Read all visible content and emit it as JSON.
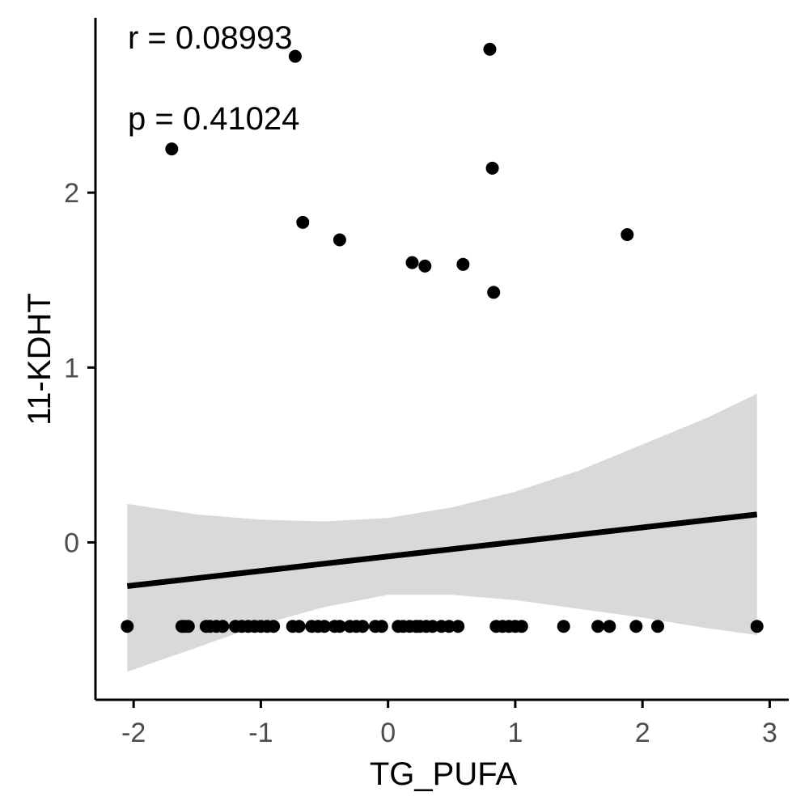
{
  "chart_data": {
    "type": "scatter",
    "xlabel": "TG_PUFA",
    "ylabel": "11-KDHT",
    "xlim": [
      -2.3,
      3.15
    ],
    "ylim": [
      -0.9,
      3.0
    ],
    "x_ticks": [
      -2,
      -1,
      0,
      1,
      2,
      3
    ],
    "y_ticks": [
      0,
      1,
      2
    ],
    "grid": false,
    "annotations": [
      "r = 0.08993",
      "p = 0.41024"
    ],
    "fit_line": {
      "x": [
        -2.05,
        2.9
      ],
      "y": [
        -0.25,
        0.16
      ]
    },
    "confidence_band": {
      "x": [
        -2.05,
        -1.5,
        -1.0,
        -0.5,
        0.0,
        0.5,
        1.0,
        1.5,
        2.0,
        2.5,
        2.9
      ],
      "upper": [
        0.22,
        0.16,
        0.13,
        0.12,
        0.14,
        0.2,
        0.29,
        0.41,
        0.56,
        0.71,
        0.85
      ],
      "lower": [
        -0.74,
        -0.6,
        -0.47,
        -0.37,
        -0.3,
        -0.3,
        -0.33,
        -0.38,
        -0.43,
        -0.49,
        -0.53
      ]
    },
    "points": {
      "x": [
        -2.05,
        -1.7,
        -0.73,
        -0.67,
        -0.38,
        0.19,
        0.29,
        0.59,
        0.8,
        0.82,
        0.83,
        1.88,
        -1.62,
        -1.6,
        -1.57,
        -1.43,
        -1.4,
        -1.35,
        -1.3,
        -1.2,
        -1.15,
        -1.1,
        -1.05,
        -1.0,
        -0.95,
        -0.9,
        -0.75,
        -0.7,
        -0.6,
        -0.55,
        -0.5,
        -0.42,
        -0.38,
        -0.3,
        -0.25,
        -0.2,
        -0.1,
        -0.05,
        0.08,
        0.12,
        0.17,
        0.22,
        0.25,
        0.3,
        0.35,
        0.42,
        0.48,
        0.55,
        0.85,
        0.9,
        0.95,
        1.0,
        1.05,
        1.38,
        1.65,
        1.74,
        1.95,
        2.12,
        2.9
      ],
      "y": [
        -0.48,
        2.25,
        2.78,
        1.83,
        1.73,
        1.6,
        1.58,
        1.59,
        2.82,
        2.14,
        1.43,
        1.76,
        -0.48,
        -0.48,
        -0.48,
        -0.48,
        -0.48,
        -0.48,
        -0.48,
        -0.48,
        -0.48,
        -0.48,
        -0.48,
        -0.48,
        -0.48,
        -0.48,
        -0.48,
        -0.48,
        -0.48,
        -0.48,
        -0.48,
        -0.48,
        -0.48,
        -0.48,
        -0.48,
        -0.48,
        -0.48,
        -0.48,
        -0.48,
        -0.48,
        -0.48,
        -0.48,
        -0.48,
        -0.48,
        -0.48,
        -0.48,
        -0.48,
        -0.48,
        -0.48,
        -0.48,
        -0.48,
        -0.48,
        -0.48,
        -0.48,
        -0.48,
        -0.48,
        -0.48,
        -0.48,
        -0.48
      ]
    }
  }
}
